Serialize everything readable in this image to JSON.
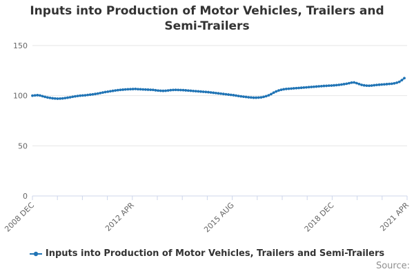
{
  "title": "Inputs into Production of Motor Vehicles, Trailers and Semi-Trailers",
  "legend": {
    "label": "Inputs into Production of Motor Vehicles, Trailers and Semi-Trailers"
  },
  "source_label": "Source:",
  "colors": {
    "series": "#2074b5",
    "grid": "#e6e6e6",
    "axis": "#ccd6eb",
    "tick_label": "#666666",
    "title": "#333333",
    "source": "#8f8f8f"
  },
  "chart_data": {
    "type": "line",
    "title": "Inputs into Production of Motor Vehicles, Trailers and Semi-Trailers",
    "xlabel": "",
    "ylabel": "",
    "ylim": [
      0,
      150
    ],
    "y_ticks": [
      0,
      50,
      100,
      150
    ],
    "grid": true,
    "legend_position": "bottom",
    "x_tick_count": 16,
    "x_labeled_ticks": [
      {
        "index": 0,
        "label": "2008 DEC"
      },
      {
        "index": 4,
        "label": "2012 APR"
      },
      {
        "index": 8,
        "label": "2015 AUG"
      },
      {
        "index": 12,
        "label": "2018 DEC"
      },
      {
        "index": 15,
        "label": "2021 APR"
      }
    ],
    "x_range_note": "monthly values from 2008 DEC to 2021 APR",
    "series": [
      {
        "name": "Inputs into Production of Motor Vehicles, Trailers and Semi-Trailers",
        "marker": "circle",
        "values": [
          100.0,
          100.3,
          100.5,
          100.2,
          99.5,
          98.8,
          98.2,
          97.8,
          97.4,
          97.2,
          97.0,
          97.1,
          97.3,
          97.6,
          98.0,
          98.4,
          98.9,
          99.3,
          99.7,
          100.0,
          100.2,
          100.4,
          100.7,
          101.0,
          101.3,
          101.7,
          102.1,
          102.6,
          103.1,
          103.6,
          104.0,
          104.4,
          104.8,
          105.2,
          105.5,
          105.8,
          106.0,
          106.2,
          106.4,
          106.5,
          106.6,
          106.7,
          106.5,
          106.4,
          106.2,
          106.1,
          106.0,
          105.9,
          105.8,
          105.4,
          105.1,
          104.9,
          104.8,
          104.9,
          105.2,
          105.5,
          105.7,
          105.8,
          105.7,
          105.6,
          105.5,
          105.3,
          105.1,
          104.9,
          104.7,
          104.5,
          104.3,
          104.1,
          103.9,
          103.7,
          103.5,
          103.2,
          102.9,
          102.6,
          102.3,
          102.0,
          101.7,
          101.4,
          101.1,
          100.8,
          100.5,
          100.1,
          99.7,
          99.3,
          99.0,
          98.7,
          98.4,
          98.2,
          98.0,
          98.0,
          98.1,
          98.3,
          98.8,
          99.5,
          100.4,
          101.6,
          103.0,
          104.2,
          105.2,
          105.9,
          106.4,
          106.7,
          106.9,
          107.1,
          107.3,
          107.5,
          107.7,
          107.9,
          108.1,
          108.3,
          108.5,
          108.7,
          108.9,
          109.1,
          109.3,
          109.5,
          109.7,
          109.8,
          110.0,
          110.1,
          110.3,
          110.5,
          110.8,
          111.1,
          111.5,
          111.9,
          112.4,
          113.0,
          113.2,
          112.5,
          111.6,
          110.8,
          110.3,
          110.0,
          109.9,
          110.1,
          110.4,
          110.7,
          110.9,
          111.1,
          111.3,
          111.5,
          111.7,
          111.9,
          112.3,
          112.9,
          113.8,
          115.5,
          117.5
        ]
      }
    ]
  }
}
